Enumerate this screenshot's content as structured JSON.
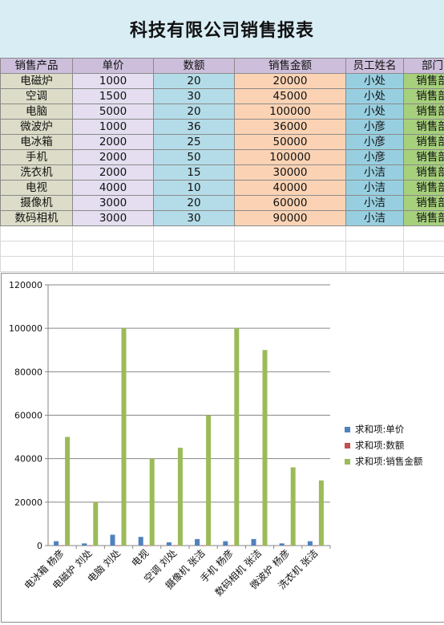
{
  "report": {
    "title": "科技有限公司销售报表"
  },
  "table": {
    "headers": [
      "销售产品",
      "单价",
      "数额",
      "销售金额",
      "员工姓名",
      "部门"
    ],
    "rows": [
      [
        "电磁炉",
        "1000",
        "20",
        "20000",
        "小处",
        "销售部"
      ],
      [
        "空调",
        "1500",
        "30",
        "45000",
        "小处",
        "销售部"
      ],
      [
        "电脑",
        "5000",
        "20",
        "100000",
        "小处",
        "销售部"
      ],
      [
        "微波炉",
        "1000",
        "36",
        "36000",
        "小彦",
        "销售部"
      ],
      [
        "电冰箱",
        "2000",
        "25",
        "50000",
        "小彦",
        "销售部"
      ],
      [
        "手机",
        "2000",
        "50",
        "100000",
        "小彦",
        "销售部"
      ],
      [
        "洗衣机",
        "2000",
        "15",
        "30000",
        "小洁",
        "销售部"
      ],
      [
        "电视",
        "4000",
        "10",
        "40000",
        "小洁",
        "销售部"
      ],
      [
        "摄像机",
        "3000",
        "20",
        "60000",
        "小洁",
        "销售部"
      ],
      [
        "数码相机",
        "3000",
        "30",
        "90000",
        "小洁",
        "销售部"
      ]
    ]
  },
  "colors": {
    "series_price": "#4f81bd",
    "series_qty": "#c0504d",
    "series_amount": "#9bbb59",
    "gridline": "#868686"
  },
  "chart_data": {
    "type": "bar",
    "categories": [
      "电冰箱 杨彦",
      "电磁炉 刘处",
      "电脑 刘处",
      "电视",
      "空调 刘处",
      "摄像机 张洁",
      "手机 杨彦",
      "数码相机 张洁",
      "微波炉 杨彦",
      "洗衣机 张洁"
    ],
    "series": [
      {
        "name": "求和项:单价",
        "values": [
          2000,
          1000,
          5000,
          4000,
          1500,
          3000,
          2000,
          3000,
          1000,
          2000
        ]
      },
      {
        "name": "求和项:数额",
        "values": [
          25,
          20,
          20,
          10,
          30,
          20,
          50,
          30,
          36,
          15
        ]
      },
      {
        "name": "求和项:销售金额",
        "values": [
          50000,
          20000,
          100000,
          40000,
          45000,
          60000,
          100000,
          90000,
          36000,
          30000
        ]
      }
    ],
    "ylim": [
      0,
      120000
    ],
    "yticks": [
      "0",
      "20000",
      "40000",
      "60000",
      "80000",
      "100000",
      "120000"
    ],
    "grid": true,
    "legend_position": "right"
  }
}
